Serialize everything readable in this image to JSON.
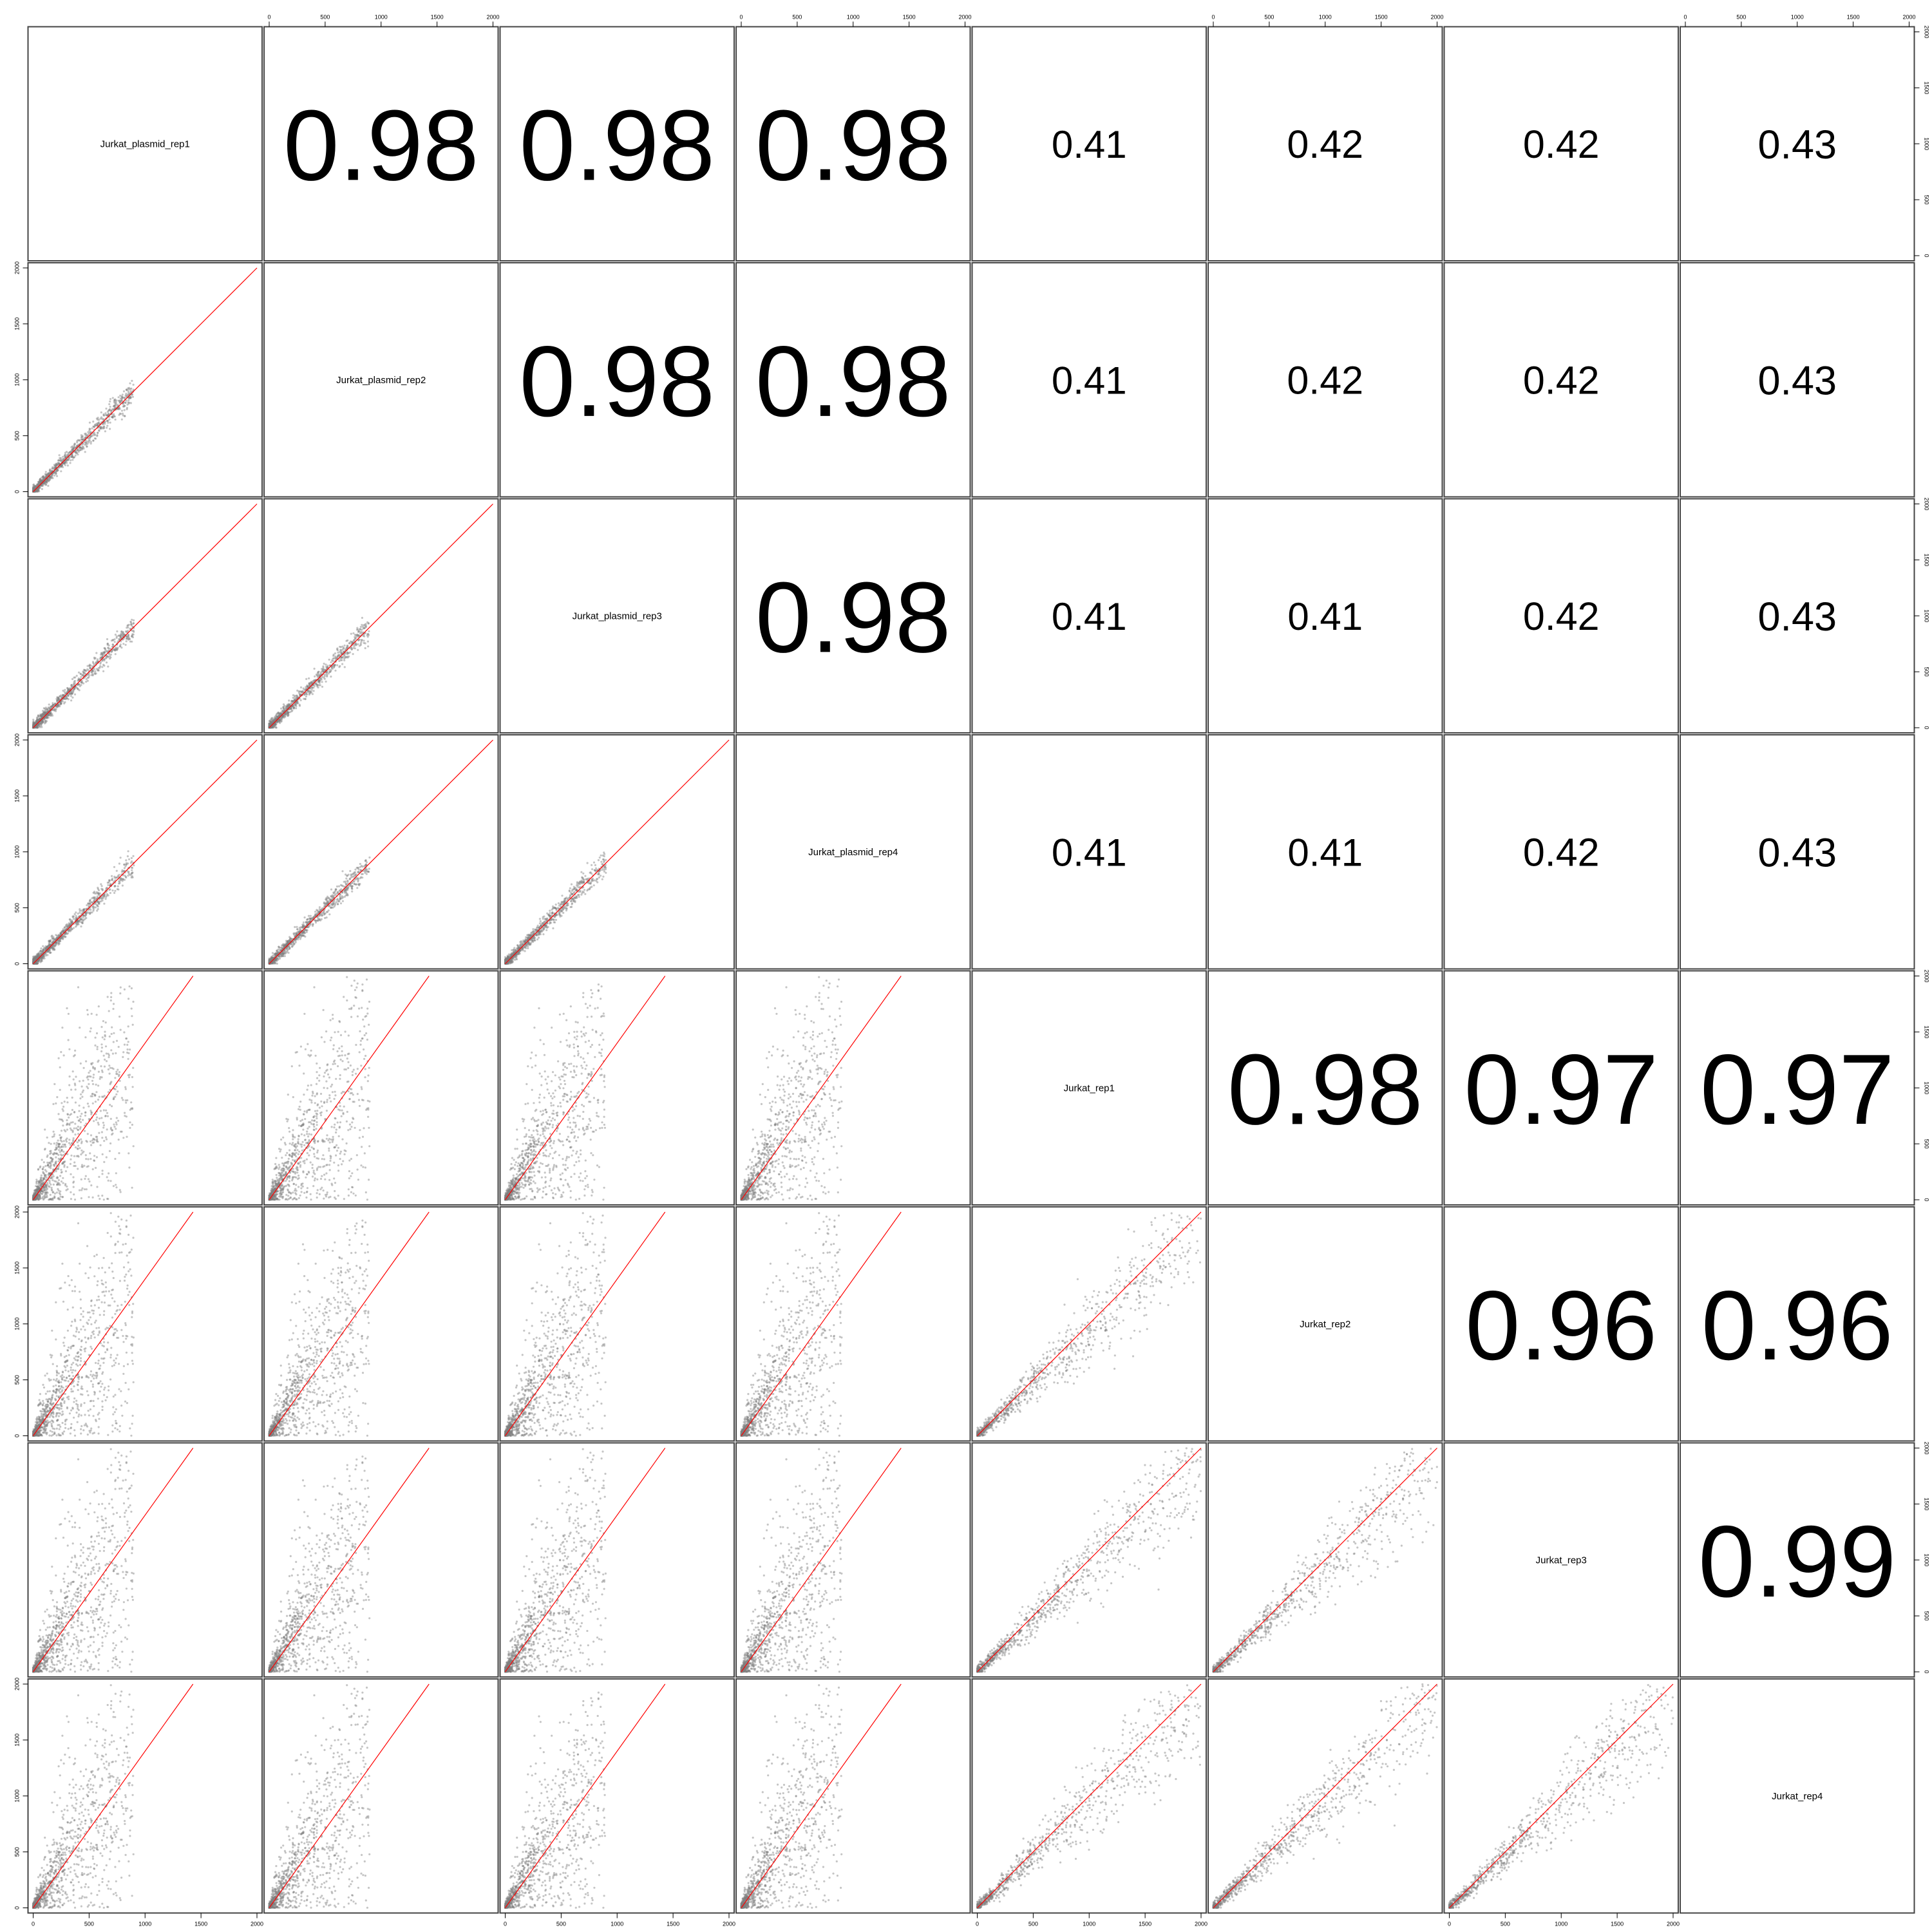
{
  "chart_data": {
    "type": "scatter",
    "variables": [
      "Jurkat_plasmid_rep1",
      "Jurkat_plasmid_rep2",
      "Jurkat_plasmid_rep3",
      "Jurkat_plasmid_rep4",
      "Jurkat_rep1",
      "Jurkat_rep2",
      "Jurkat_rep3",
      "Jurkat_rep4"
    ],
    "correlations": [
      [
        null,
        "0.98",
        "0.98",
        "0.98",
        "0.41",
        "0.42",
        "0.42",
        "0.43"
      ],
      [
        null,
        null,
        "0.98",
        "0.98",
        "0.41",
        "0.42",
        "0.42",
        "0.43"
      ],
      [
        null,
        null,
        null,
        "0.98",
        "0.41",
        "0.41",
        "0.42",
        "0.43"
      ],
      [
        null,
        null,
        null,
        null,
        "0.41",
        "0.41",
        "0.42",
        "0.43"
      ],
      [
        null,
        null,
        null,
        null,
        null,
        "0.98",
        "0.97",
        "0.97"
      ],
      [
        null,
        null,
        null,
        null,
        null,
        null,
        "0.96",
        "0.96"
      ],
      [
        null,
        null,
        null,
        null,
        null,
        null,
        null,
        "0.99"
      ],
      [
        null,
        null,
        null,
        null,
        null,
        null,
        null,
        null
      ]
    ],
    "axis_range": [
      0,
      2000
    ],
    "tick_labels": [
      "0",
      "500",
      "1000",
      "1500",
      "2000"
    ],
    "upper_panel": "correlation coefficient",
    "lower_panel": "scatter with y = x reference line",
    "grid": false,
    "colors": {
      "points": "#7f7f7f",
      "reference_line": "#ff0000",
      "panel_border": "#444444",
      "text": "#000000"
    }
  }
}
